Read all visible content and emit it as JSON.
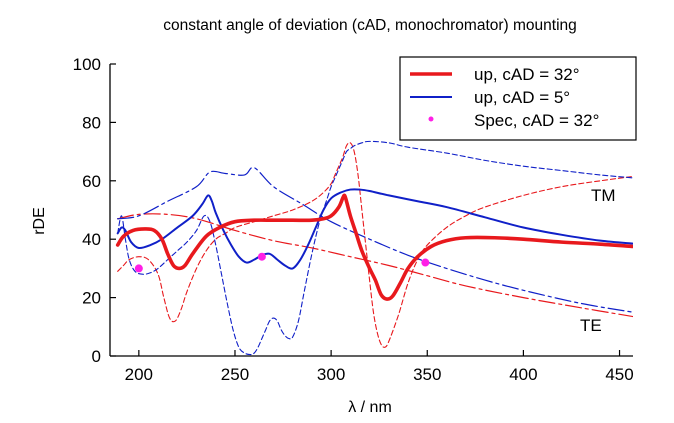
{
  "chart_data": {
    "type": "line",
    "title": "constant angle of deviation (cAD, monochromator) mounting",
    "xlabel": "λ / nm",
    "ylabel": "rDE",
    "xlim": [
      185,
      457
    ],
    "ylim": [
      0,
      100
    ],
    "x_ticks": [
      200,
      250,
      300,
      350,
      400,
      450
    ],
    "y_ticks": [
      0,
      20,
      40,
      60,
      80,
      100
    ],
    "grid": false,
    "legend_position": "top-right",
    "colors": {
      "red": "#e8191d",
      "blue": "#1020c8",
      "magenta": "#ff1fe6"
    },
    "legend": [
      {
        "label": "up, cAD = 32°",
        "style": "thick-red-line"
      },
      {
        "label": "up, cAD = 5°",
        "style": "blue-line"
      },
      {
        "label": "Spec, cAD = 32°",
        "style": "magenta-dot"
      }
    ],
    "annotations": [
      {
        "text": "TM",
        "x": 435,
        "y": 55
      },
      {
        "text": "TE",
        "x": 433,
        "y": 10
      }
    ],
    "series": [
      {
        "name": "up, cAD = 32°",
        "color": "#e8191d",
        "style": "solid-thick",
        "x": [
          189,
          192,
          197,
          203,
          208,
          212,
          215,
          218,
          221,
          224,
          228,
          235,
          242,
          250,
          260,
          270,
          280,
          290,
          296,
          300,
          304,
          306,
          307,
          308,
          310,
          313,
          316,
          320,
          323,
          326,
          329,
          332,
          336,
          340,
          345,
          352,
          360,
          370,
          385,
          400,
          420,
          440,
          457
        ],
        "y": [
          38,
          41,
          43,
          43.5,
          43,
          40,
          35,
          31,
          30,
          31,
          35,
          41,
          44,
          46,
          46.5,
          46.5,
          46.5,
          46.5,
          47,
          48,
          51,
          54,
          55,
          53,
          48,
          42,
          36,
          30,
          26,
          21,
          19.5,
          20.5,
          25,
          30,
          34,
          37.5,
          39.5,
          40.5,
          40.5,
          40,
          39,
          38.3,
          37.5
        ]
      },
      {
        "name": "up, cAD = 5°",
        "color": "#1020c8",
        "style": "solid",
        "x": [
          189,
          191,
          193,
          196,
          200,
          206,
          212,
          220,
          228,
          233,
          236,
          238,
          240,
          244,
          248,
          252,
          256,
          260,
          264,
          268,
          272,
          276,
          280,
          284,
          288,
          292,
          296,
          300,
          305,
          310,
          315,
          320,
          330,
          345,
          360,
          380,
          400,
          420,
          440,
          457
        ],
        "y": [
          42,
          44,
          43,
          39,
          37,
          38,
          40,
          44,
          48,
          52,
          55,
          53,
          49,
          43,
          38,
          34,
          32,
          33,
          34.5,
          35,
          33,
          31,
          30,
          33,
          38,
          44,
          50,
          54,
          56,
          57,
          57,
          56.5,
          55,
          53,
          51,
          47.5,
          44,
          41.5,
          39.5,
          38.5
        ]
      },
      {
        "name": "TM-red",
        "color": "#e8191d",
        "style": "dashed-thin",
        "x": [
          189,
          192,
          195,
          200,
          205,
          210,
          213,
          216,
          219,
          222,
          225,
          230,
          235,
          240,
          245,
          250,
          260,
          270,
          280,
          290,
          296,
          300,
          302,
          304,
          306,
          308,
          310,
          312,
          314,
          316,
          318,
          320,
          322,
          324,
          326,
          328,
          330,
          335,
          340,
          345,
          350,
          360,
          370,
          380,
          400,
          420,
          440,
          457
        ],
        "y": [
          29,
          31,
          33,
          34,
          33,
          28,
          20,
          13,
          12,
          16,
          22,
          30,
          36,
          40,
          42,
          44,
          46,
          48,
          50,
          53,
          56,
          59,
          62,
          65,
          68,
          72,
          73,
          70,
          62,
          50,
          38,
          26,
          15,
          8,
          4,
          3,
          5,
          14,
          25,
          33,
          38,
          44,
          48,
          51,
          55,
          58,
          60,
          61.5
        ]
      },
      {
        "name": "TM-blue",
        "color": "#1020c8",
        "style": "dashed-thin",
        "x": [
          189,
          191,
          193,
          195,
          198,
          202,
          206,
          210,
          215,
          220,
          225,
          230,
          234,
          237,
          240,
          243,
          246,
          249,
          252,
          255,
          258,
          260,
          262,
          264,
          266,
          268,
          270,
          272,
          274,
          276,
          278,
          280,
          283,
          286,
          290,
          294,
          298,
          300,
          302,
          304,
          306,
          308,
          310,
          312,
          316,
          320,
          330,
          340,
          360,
          380,
          400,
          420,
          440,
          457
        ],
        "y": [
          42,
          48,
          40,
          33,
          29,
          28,
          28.5,
          30,
          33,
          36,
          39,
          43,
          48,
          46,
          38,
          28,
          18,
          9,
          3,
          1,
          0.5,
          1,
          3,
          6,
          9,
          12,
          13,
          12,
          9,
          7,
          6,
          6.5,
          12,
          22,
          35,
          46,
          54,
          58,
          61,
          64,
          67,
          70,
          71,
          72,
          73,
          73.5,
          73,
          71.5,
          69.5,
          67,
          65,
          63.5,
          62,
          61
        ]
      },
      {
        "name": "TE-red",
        "color": "#e8191d",
        "style": "dashdot",
        "x": [
          189,
          200,
          215,
          230,
          250,
          270,
          290,
          310,
          330,
          350,
          370,
          400,
          430,
          457
        ],
        "y": [
          47,
          48.5,
          48.5,
          47,
          43,
          39.5,
          37,
          34,
          31,
          27.5,
          24,
          20,
          16.5,
          13.5
        ]
      },
      {
        "name": "TE-blue",
        "color": "#1020c8",
        "style": "dashdot",
        "x": [
          189,
          200,
          215,
          230,
          237,
          245,
          255,
          260,
          270,
          285,
          300,
          320,
          340,
          360,
          380,
          400,
          430,
          457
        ],
        "y": [
          47,
          48,
          53,
          58,
          63,
          62.5,
          62,
          64.5,
          58,
          52,
          46,
          40,
          34.5,
          30,
          26,
          22.5,
          18,
          15
        ]
      }
    ],
    "spec_points": {
      "name": "Spec, cAD = 32°",
      "color": "#ff1fe6",
      "x": [
        200,
        264,
        349
      ],
      "y": [
        30,
        34,
        32
      ]
    }
  }
}
